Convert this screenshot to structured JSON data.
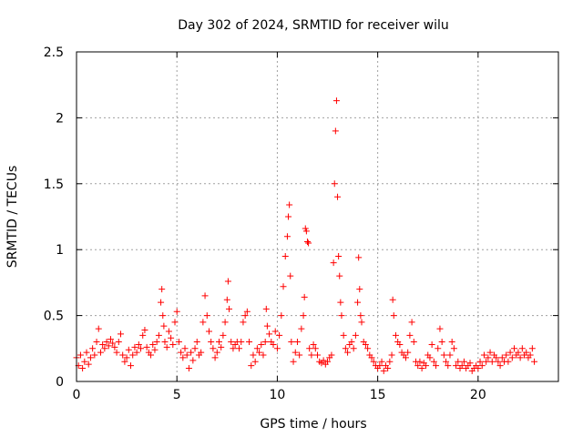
{
  "chart_data": {
    "type": "scatter",
    "title": "Day 302 of 2024, SRMTID for receiver wilu",
    "xlabel": "GPS time / hours",
    "ylabel": "SRMTID / TECUs",
    "xlim": [
      0,
      24
    ],
    "ylim": [
      0,
      2.5
    ],
    "xticks": [
      0,
      5,
      10,
      15,
      20
    ],
    "yticks": [
      0,
      0.5,
      1,
      1.5,
      2,
      2.5
    ],
    "xtick_labels": [
      "0",
      "5",
      "10",
      "15",
      "20"
    ],
    "ytick_labels": [
      "0",
      "0.5",
      "1",
      "1.5",
      "2",
      "2.5"
    ],
    "grid": true,
    "marker": "+",
    "color": "#ff0000",
    "series": [
      {
        "name": "SRMTID",
        "points": [
          [
            0.0,
            0.18
          ],
          [
            0.1,
            0.12
          ],
          [
            0.2,
            0.2
          ],
          [
            0.3,
            0.1
          ],
          [
            0.4,
            0.15
          ],
          [
            0.5,
            0.22
          ],
          [
            0.6,
            0.13
          ],
          [
            0.7,
            0.18
          ],
          [
            0.8,
            0.25
          ],
          [
            0.9,
            0.2
          ],
          [
            1.0,
            0.3
          ],
          [
            1.1,
            0.4
          ],
          [
            1.2,
            0.22
          ],
          [
            1.3,
            0.28
          ],
          [
            1.4,
            0.25
          ],
          [
            1.5,
            0.3
          ],
          [
            1.6,
            0.27
          ],
          [
            1.7,
            0.32
          ],
          [
            1.8,
            0.29
          ],
          [
            1.9,
            0.26
          ],
          [
            2.0,
            0.22
          ],
          [
            2.1,
            0.3
          ],
          [
            2.2,
            0.36
          ],
          [
            2.3,
            0.2
          ],
          [
            2.4,
            0.15
          ],
          [
            2.5,
            0.18
          ],
          [
            2.6,
            0.24
          ],
          [
            2.7,
            0.12
          ],
          [
            2.8,
            0.2
          ],
          [
            2.9,
            0.26
          ],
          [
            3.0,
            0.22
          ],
          [
            3.1,
            0.28
          ],
          [
            3.2,
            0.25
          ],
          [
            3.3,
            0.35
          ],
          [
            3.4,
            0.39
          ],
          [
            3.5,
            0.26
          ],
          [
            3.6,
            0.22
          ],
          [
            3.7,
            0.2
          ],
          [
            3.8,
            0.28
          ],
          [
            3.9,
            0.24
          ],
          [
            4.0,
            0.3
          ],
          [
            4.1,
            0.35
          ],
          [
            4.2,
            0.6
          ],
          [
            4.25,
            0.7
          ],
          [
            4.3,
            0.5
          ],
          [
            4.35,
            0.42
          ],
          [
            4.4,
            0.3
          ],
          [
            4.5,
            0.26
          ],
          [
            4.6,
            0.38
          ],
          [
            4.7,
            0.33
          ],
          [
            4.8,
            0.28
          ],
          [
            4.9,
            0.45
          ],
          [
            5.0,
            0.53
          ],
          [
            5.1,
            0.3
          ],
          [
            5.2,
            0.22
          ],
          [
            5.3,
            0.18
          ],
          [
            5.4,
            0.25
          ],
          [
            5.5,
            0.2
          ],
          [
            5.6,
            0.1
          ],
          [
            5.7,
            0.22
          ],
          [
            5.8,
            0.16
          ],
          [
            5.9,
            0.25
          ],
          [
            6.0,
            0.3
          ],
          [
            6.1,
            0.2
          ],
          [
            6.2,
            0.22
          ],
          [
            6.3,
            0.45
          ],
          [
            6.4,
            0.65
          ],
          [
            6.5,
            0.5
          ],
          [
            6.6,
            0.38
          ],
          [
            6.7,
            0.3
          ],
          [
            6.8,
            0.25
          ],
          [
            6.9,
            0.18
          ],
          [
            7.0,
            0.22
          ],
          [
            7.1,
            0.3
          ],
          [
            7.2,
            0.26
          ],
          [
            7.3,
            0.35
          ],
          [
            7.4,
            0.45
          ],
          [
            7.5,
            0.62
          ],
          [
            7.55,
            0.76
          ],
          [
            7.6,
            0.55
          ],
          [
            7.7,
            0.3
          ],
          [
            7.8,
            0.25
          ],
          [
            7.9,
            0.28
          ],
          [
            8.0,
            0.3
          ],
          [
            8.1,
            0.25
          ],
          [
            8.2,
            0.3
          ],
          [
            8.3,
            0.45
          ],
          [
            8.4,
            0.5
          ],
          [
            8.5,
            0.53
          ],
          [
            8.6,
            0.3
          ],
          [
            8.7,
            0.12
          ],
          [
            8.8,
            0.2
          ],
          [
            8.9,
            0.15
          ],
          [
            9.0,
            0.25
          ],
          [
            9.1,
            0.22
          ],
          [
            9.2,
            0.28
          ],
          [
            9.3,
            0.2
          ],
          [
            9.4,
            0.3
          ],
          [
            9.45,
            0.55
          ],
          [
            9.5,
            0.42
          ],
          [
            9.6,
            0.36
          ],
          [
            9.7,
            0.3
          ],
          [
            9.8,
            0.28
          ],
          [
            9.9,
            0.38
          ],
          [
            10.0,
            0.25
          ],
          [
            10.1,
            0.35
          ],
          [
            10.2,
            0.5
          ],
          [
            10.3,
            0.72
          ],
          [
            10.4,
            0.95
          ],
          [
            10.5,
            1.1
          ],
          [
            10.55,
            1.25
          ],
          [
            10.6,
            1.34
          ],
          [
            10.65,
            0.8
          ],
          [
            10.7,
            0.3
          ],
          [
            10.8,
            0.15
          ],
          [
            10.9,
            0.22
          ],
          [
            11.0,
            0.3
          ],
          [
            11.1,
            0.2
          ],
          [
            11.2,
            0.4
          ],
          [
            11.3,
            0.5
          ],
          [
            11.35,
            0.64
          ],
          [
            11.4,
            1.16
          ],
          [
            11.45,
            1.14
          ],
          [
            11.5,
            1.06
          ],
          [
            11.55,
            1.05
          ],
          [
            11.6,
            0.25
          ],
          [
            11.7,
            0.2
          ],
          [
            11.8,
            0.28
          ],
          [
            11.9,
            0.25
          ],
          [
            12.0,
            0.2
          ],
          [
            12.1,
            0.15
          ],
          [
            12.2,
            0.14
          ],
          [
            12.3,
            0.16
          ],
          [
            12.4,
            0.13
          ],
          [
            12.5,
            0.15
          ],
          [
            12.6,
            0.18
          ],
          [
            12.7,
            0.2
          ],
          [
            12.8,
            0.9
          ],
          [
            12.85,
            1.5
          ],
          [
            12.9,
            1.9
          ],
          [
            12.95,
            2.13
          ],
          [
            13.0,
            1.4
          ],
          [
            13.05,
            0.95
          ],
          [
            13.1,
            0.8
          ],
          [
            13.15,
            0.6
          ],
          [
            13.2,
            0.5
          ],
          [
            13.3,
            0.35
          ],
          [
            13.4,
            0.25
          ],
          [
            13.5,
            0.22
          ],
          [
            13.6,
            0.28
          ],
          [
            13.7,
            0.3
          ],
          [
            13.8,
            0.25
          ],
          [
            13.9,
            0.35
          ],
          [
            14.0,
            0.6
          ],
          [
            14.05,
            0.94
          ],
          [
            14.1,
            0.7
          ],
          [
            14.15,
            0.5
          ],
          [
            14.2,
            0.45
          ],
          [
            14.3,
            0.3
          ],
          [
            14.4,
            0.28
          ],
          [
            14.5,
            0.25
          ],
          [
            14.6,
            0.2
          ],
          [
            14.7,
            0.18
          ],
          [
            14.8,
            0.15
          ],
          [
            14.9,
            0.12
          ],
          [
            15.0,
            0.1
          ],
          [
            15.1,
            0.12
          ],
          [
            15.2,
            0.15
          ],
          [
            15.3,
            0.08
          ],
          [
            15.4,
            0.12
          ],
          [
            15.5,
            0.1
          ],
          [
            15.6,
            0.15
          ],
          [
            15.7,
            0.2
          ],
          [
            15.75,
            0.62
          ],
          [
            15.8,
            0.5
          ],
          [
            15.9,
            0.35
          ],
          [
            16.0,
            0.3
          ],
          [
            16.1,
            0.28
          ],
          [
            16.2,
            0.22
          ],
          [
            16.3,
            0.2
          ],
          [
            16.4,
            0.18
          ],
          [
            16.5,
            0.22
          ],
          [
            16.6,
            0.35
          ],
          [
            16.7,
            0.45
          ],
          [
            16.8,
            0.3
          ],
          [
            16.9,
            0.15
          ],
          [
            17.0,
            0.12
          ],
          [
            17.1,
            0.15
          ],
          [
            17.2,
            0.1
          ],
          [
            17.3,
            0.14
          ],
          [
            17.4,
            0.12
          ],
          [
            17.5,
            0.2
          ],
          [
            17.6,
            0.18
          ],
          [
            17.7,
            0.28
          ],
          [
            17.8,
            0.15
          ],
          [
            17.9,
            0.12
          ],
          [
            18.0,
            0.25
          ],
          [
            18.1,
            0.4
          ],
          [
            18.2,
            0.3
          ],
          [
            18.3,
            0.2
          ],
          [
            18.4,
            0.15
          ],
          [
            18.5,
            0.12
          ],
          [
            18.6,
            0.2
          ],
          [
            18.7,
            0.3
          ],
          [
            18.8,
            0.25
          ],
          [
            18.9,
            0.12
          ],
          [
            19.0,
            0.15
          ],
          [
            19.1,
            0.1
          ],
          [
            19.2,
            0.12
          ],
          [
            19.3,
            0.15
          ],
          [
            19.4,
            0.1
          ],
          [
            19.5,
            0.12
          ],
          [
            19.6,
            0.14
          ],
          [
            19.7,
            0.08
          ],
          [
            19.8,
            0.1
          ],
          [
            19.9,
            0.12
          ],
          [
            20.0,
            0.1
          ],
          [
            20.1,
            0.15
          ],
          [
            20.2,
            0.12
          ],
          [
            20.3,
            0.2
          ],
          [
            20.4,
            0.15
          ],
          [
            20.5,
            0.18
          ],
          [
            20.6,
            0.22
          ],
          [
            20.7,
            0.15
          ],
          [
            20.8,
            0.2
          ],
          [
            20.9,
            0.18
          ],
          [
            21.0,
            0.15
          ],
          [
            21.1,
            0.12
          ],
          [
            21.2,
            0.18
          ],
          [
            21.3,
            0.15
          ],
          [
            21.4,
            0.2
          ],
          [
            21.5,
            0.15
          ],
          [
            21.6,
            0.22
          ],
          [
            21.7,
            0.18
          ],
          [
            21.8,
            0.25
          ],
          [
            21.9,
            0.2
          ],
          [
            22.0,
            0.22
          ],
          [
            22.1,
            0.18
          ],
          [
            22.2,
            0.25
          ],
          [
            22.3,
            0.2
          ],
          [
            22.4,
            0.22
          ],
          [
            22.5,
            0.18
          ],
          [
            22.6,
            0.2
          ],
          [
            22.7,
            0.25
          ],
          [
            22.8,
            0.15
          ]
        ]
      }
    ]
  }
}
